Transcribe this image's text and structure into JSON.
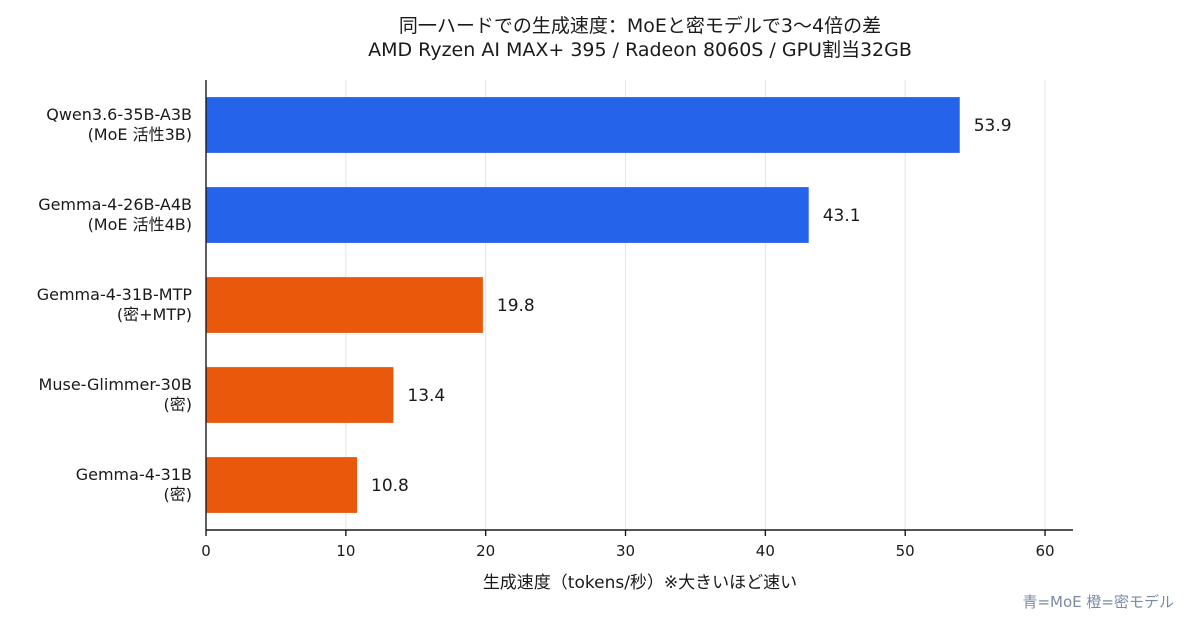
{
  "chart_data": {
    "type": "bar",
    "orientation": "horizontal",
    "title": "同一ハードでの生成速度：MoEと密モデルで3〜4倍の差",
    "subtitle": "AMD Ryzen AI MAX+ 395 / Radeon 8060S / GPU割当32GB",
    "xlabel": "生成速度（tokens/秒）※大きいほど速い",
    "ylabel": "",
    "xlim": [
      0,
      62
    ],
    "xticks": [
      0,
      10,
      20,
      30,
      40,
      50,
      60
    ],
    "grid": "vertical",
    "categories": [
      [
        "Qwen3.6-35B-A3B",
        "(MoE 活性3B)"
      ],
      [
        "Gemma-4-26B-A4B",
        "(MoE 活性4B)"
      ],
      [
        "Gemma-4-31B-MTP",
        "(密+MTP)"
      ],
      [
        "Muse-Glimmer-30B",
        "(密)"
      ],
      [
        "Gemma-4-31B",
        "(密)"
      ]
    ],
    "values": [
      53.9,
      43.1,
      19.8,
      13.4,
      10.8
    ],
    "value_labels": [
      "53.9",
      "43.1",
      "19.8",
      "13.4",
      "10.8"
    ],
    "bar_colors": [
      "#2563eb",
      "#2563eb",
      "#ea580c",
      "#ea580c",
      "#ea580c"
    ]
  },
  "footnote": "青=MoE  橙=密モデル"
}
